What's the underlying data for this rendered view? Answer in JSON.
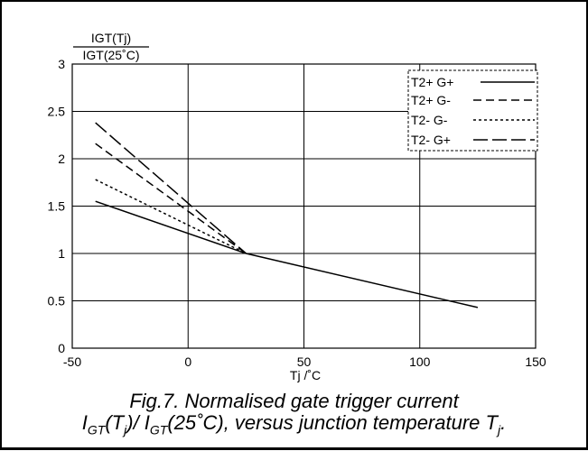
{
  "chart_data": {
    "type": "line",
    "xlabel": "Tj /˚C",
    "ylabel_numerator": "IGT(Tj)",
    "ylabel_denominator": "IGT(25˚C)",
    "xlim": [
      -50,
      150
    ],
    "ylim": [
      0,
      3
    ],
    "xticks": [
      "-50",
      "0",
      "50",
      "100",
      "150"
    ],
    "yticks": [
      "0",
      "0.5",
      "1",
      "1.5",
      "2",
      "2.5",
      "3"
    ],
    "grid": true,
    "legend_position": "top-right",
    "series": [
      {
        "name": "T2+ G+",
        "style": "solid",
        "x": [
          -40,
          25,
          125
        ],
        "y": [
          1.55,
          1.0,
          0.43
        ]
      },
      {
        "name": "T2+ G-",
        "style": "dashed",
        "x": [
          -40,
          25
        ],
        "y": [
          2.16,
          1.0
        ]
      },
      {
        "name": "T2- G-",
        "style": "dotted",
        "x": [
          -40,
          25
        ],
        "y": [
          1.78,
          1.0
        ]
      },
      {
        "name": "T2- G+",
        "style": "longdash",
        "x": [
          -40,
          25
        ],
        "y": [
          2.38,
          1.0
        ]
      }
    ]
  },
  "caption": {
    "line1": "Fig.7.   Normalised gate trigger current",
    "line2_prefix": "I",
    "line2_sub1": "GT",
    "line2_mid1": "(T",
    "line2_sub2": "j",
    "line2_mid2": ")/ I",
    "line2_sub3": "GT",
    "line2_mid3": "(25˚C), versus junction temperature T",
    "line2_sub4": "j",
    "line2_end": "."
  }
}
